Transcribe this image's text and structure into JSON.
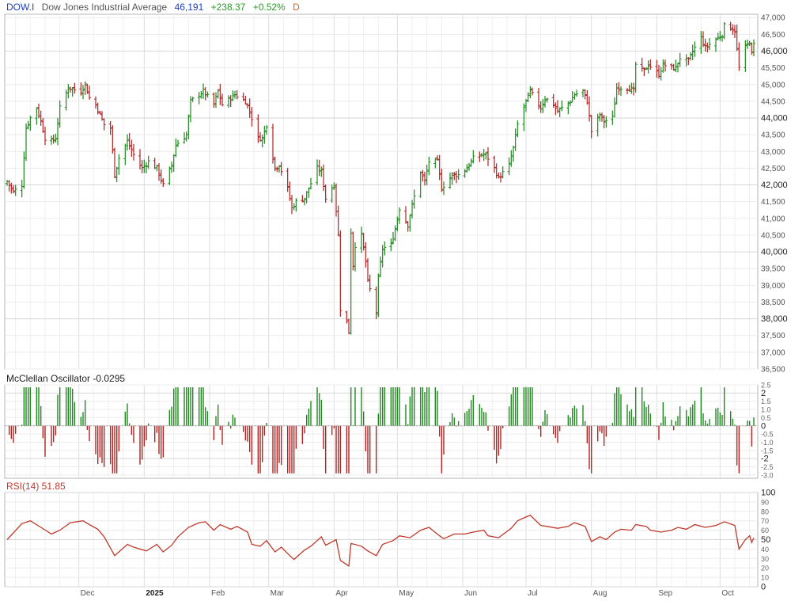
{
  "header": {
    "symbol": "DOW.I",
    "name": "Dow Jones Industrial Average",
    "price": "46,191",
    "change": "+238.37",
    "change_pct": "+0.52%",
    "period": "D"
  },
  "colors": {
    "up": "#1e8a1e",
    "down": "#b22222",
    "grid": "#e4e4e4",
    "rsi_line": "#c0392b",
    "border": "#bbbbbb"
  },
  "x_axis_labels": [
    "Dec",
    "2025",
    "Feb",
    "Mar",
    "Apr",
    "May",
    "Jun",
    "Jul",
    "Aug",
    "Sep",
    "Oct"
  ],
  "chart_data": [
    {
      "type": "ohlc",
      "title": "Dow Jones Industrial Average",
      "ylim": [
        36500,
        47100
      ],
      "y_ticks": [
        "36,500",
        "37,000",
        "37,500",
        "38,000",
        "38,500",
        "39,000",
        "39,500",
        "40,000",
        "40,500",
        "41,000",
        "41,500",
        "42,000",
        "42,500",
        "43,000",
        "43,500",
        "44,000",
        "44,500",
        "45,000",
        "45,500",
        "46,000",
        "46,500",
        "47,000"
      ],
      "y_major": [
        38000,
        40000,
        42000,
        44000,
        46000
      ],
      "grid": true,
      "close_series": [
        {
          "x": "2024-10-28",
          "y": 42100
        },
        {
          "x": "2024-10-31",
          "y": 41800
        },
        {
          "x": "2024-11-04",
          "y": 42000
        },
        {
          "x": "2024-11-06",
          "y": 43700
        },
        {
          "x": "2024-11-08",
          "y": 44000
        },
        {
          "x": "2024-11-11",
          "y": 44300
        },
        {
          "x": "2024-11-13",
          "y": 43900
        },
        {
          "x": "2024-11-15",
          "y": 43400
        },
        {
          "x": "2024-11-18",
          "y": 43300
        },
        {
          "x": "2024-11-20",
          "y": 43400
        },
        {
          "x": "2024-11-22",
          "y": 44300
        },
        {
          "x": "2024-11-26",
          "y": 44900
        },
        {
          "x": "2024-12-02",
          "y": 44800
        },
        {
          "x": "2024-12-04",
          "y": 45000
        },
        {
          "x": "2024-12-06",
          "y": 44600
        },
        {
          "x": "2024-12-09",
          "y": 44400
        },
        {
          "x": "2024-12-11",
          "y": 44100
        },
        {
          "x": "2024-12-13",
          "y": 43800
        },
        {
          "x": "2024-12-16",
          "y": 43700
        },
        {
          "x": "2024-12-18",
          "y": 42300
        },
        {
          "x": "2024-12-20",
          "y": 42800
        },
        {
          "x": "2024-12-24",
          "y": 43300
        },
        {
          "x": "2024-12-27",
          "y": 42900
        },
        {
          "x": "2024-12-31",
          "y": 42500
        },
        {
          "x": "2025-01-03",
          "y": 42700
        },
        {
          "x": "2025-01-07",
          "y": 42500
        },
        {
          "x": "2025-01-10",
          "y": 42000
        },
        {
          "x": "2025-01-14",
          "y": 42600
        },
        {
          "x": "2025-01-16",
          "y": 43200
        },
        {
          "x": "2025-01-21",
          "y": 43500
        },
        {
          "x": "2025-01-23",
          "y": 44500
        },
        {
          "x": "2025-01-27",
          "y": 44700
        },
        {
          "x": "2025-01-29",
          "y": 44800
        },
        {
          "x": "2025-02-03",
          "y": 44400
        },
        {
          "x": "2025-02-05",
          "y": 44800
        },
        {
          "x": "2025-02-07",
          "y": 44400
        },
        {
          "x": "2025-02-11",
          "y": 44600
        },
        {
          "x": "2025-02-13",
          "y": 44700
        },
        {
          "x": "2025-02-18",
          "y": 44500
        },
        {
          "x": "2025-02-20",
          "y": 44200
        },
        {
          "x": "2025-02-24",
          "y": 43400
        },
        {
          "x": "2025-02-26",
          "y": 43400
        },
        {
          "x": "2025-02-28",
          "y": 43800
        },
        {
          "x": "2025-03-04",
          "y": 42500
        },
        {
          "x": "2025-03-06",
          "y": 42600
        },
        {
          "x": "2025-03-10",
          "y": 41900
        },
        {
          "x": "2025-03-12",
          "y": 41300
        },
        {
          "x": "2025-03-14",
          "y": 41500
        },
        {
          "x": "2025-03-18",
          "y": 41600
        },
        {
          "x": "2025-03-20",
          "y": 41900
        },
        {
          "x": "2025-03-24",
          "y": 42500
        },
        {
          "x": "2025-03-26",
          "y": 42400
        },
        {
          "x": "2025-03-28",
          "y": 41600
        },
        {
          "x": "2025-04-01",
          "y": 42000
        },
        {
          "x": "2025-04-03",
          "y": 40500
        },
        {
          "x": "2025-04-04",
          "y": 38300
        },
        {
          "x": "2025-04-07",
          "y": 37900
        },
        {
          "x": "2025-04-08",
          "y": 37600
        },
        {
          "x": "2025-04-09",
          "y": 40600
        },
        {
          "x": "2025-04-10",
          "y": 39600
        },
        {
          "x": "2025-04-11",
          "y": 40200
        },
        {
          "x": "2025-04-14",
          "y": 40500
        },
        {
          "x": "2025-04-16",
          "y": 39700
        },
        {
          "x": "2025-04-17",
          "y": 39100
        },
        {
          "x": "2025-04-21",
          "y": 38200
        },
        {
          "x": "2025-04-22",
          "y": 39200
        },
        {
          "x": "2025-04-24",
          "y": 40100
        },
        {
          "x": "2025-04-28",
          "y": 40200
        },
        {
          "x": "2025-04-30",
          "y": 40700
        },
        {
          "x": "2025-05-02",
          "y": 41300
        },
        {
          "x": "2025-05-06",
          "y": 40800
        },
        {
          "x": "2025-05-08",
          "y": 41400
        },
        {
          "x": "2025-05-12",
          "y": 42400
        },
        {
          "x": "2025-05-14",
          "y": 42100
        },
        {
          "x": "2025-05-16",
          "y": 42700
        },
        {
          "x": "2025-05-20",
          "y": 42700
        },
        {
          "x": "2025-05-22",
          "y": 41900
        },
        {
          "x": "2025-05-27",
          "y": 42300
        },
        {
          "x": "2025-05-30",
          "y": 42300
        },
        {
          "x": "2025-06-03",
          "y": 42500
        },
        {
          "x": "2025-06-06",
          "y": 42800
        },
        {
          "x": "2025-06-10",
          "y": 42900
        },
        {
          "x": "2025-06-12",
          "y": 42900
        },
        {
          "x": "2025-06-16",
          "y": 42500
        },
        {
          "x": "2025-06-18",
          "y": 42200
        },
        {
          "x": "2025-06-23",
          "y": 42600
        },
        {
          "x": "2025-06-25",
          "y": 43100
        },
        {
          "x": "2025-06-27",
          "y": 43800
        },
        {
          "x": "2025-07-01",
          "y": 44500
        },
        {
          "x": "2025-07-03",
          "y": 44800
        },
        {
          "x": "2025-07-08",
          "y": 44300
        },
        {
          "x": "2025-07-10",
          "y": 44600
        },
        {
          "x": "2025-07-14",
          "y": 44400
        },
        {
          "x": "2025-07-16",
          "y": 44200
        },
        {
          "x": "2025-07-18",
          "y": 44300
        },
        {
          "x": "2025-07-22",
          "y": 44500
        },
        {
          "x": "2025-07-24",
          "y": 44700
        },
        {
          "x": "2025-07-28",
          "y": 44800
        },
        {
          "x": "2025-07-30",
          "y": 44500
        },
        {
          "x": "2025-08-01",
          "y": 43600
        },
        {
          "x": "2025-08-05",
          "y": 44100
        },
        {
          "x": "2025-08-07",
          "y": 43900
        },
        {
          "x": "2025-08-11",
          "y": 44000
        },
        {
          "x": "2025-08-13",
          "y": 44900
        },
        {
          "x": "2025-08-15",
          "y": 44900
        },
        {
          "x": "2025-08-19",
          "y": 44900
        },
        {
          "x": "2025-08-21",
          "y": 44800
        },
        {
          "x": "2025-08-22",
          "y": 45600
        },
        {
          "x": "2025-08-26",
          "y": 45400
        },
        {
          "x": "2025-08-28",
          "y": 45600
        },
        {
          "x": "2025-09-02",
          "y": 45300
        },
        {
          "x": "2025-09-04",
          "y": 45600
        },
        {
          "x": "2025-09-08",
          "y": 45500
        },
        {
          "x": "2025-09-10",
          "y": 45500
        },
        {
          "x": "2025-09-12",
          "y": 45800
        },
        {
          "x": "2025-09-16",
          "y": 45700
        },
        {
          "x": "2025-09-18",
          "y": 46000
        },
        {
          "x": "2025-09-22",
          "y": 46400
        },
        {
          "x": "2025-09-24",
          "y": 46100
        },
        {
          "x": "2025-09-26",
          "y": 46200
        },
        {
          "x": "2025-09-30",
          "y": 46400
        },
        {
          "x": "2025-10-02",
          "y": 46500
        },
        {
          "x": "2025-10-03",
          "y": 46750
        },
        {
          "x": "2025-10-06",
          "y": 46700
        },
        {
          "x": "2025-10-08",
          "y": 46600
        },
        {
          "x": "2025-10-10",
          "y": 45500
        },
        {
          "x": "2025-10-13",
          "y": 46100
        },
        {
          "x": "2025-10-15",
          "y": 46300
        },
        {
          "x": "2025-10-16",
          "y": 45900
        },
        {
          "x": "2025-10-17",
          "y": 46191
        }
      ]
    },
    {
      "type": "bar",
      "title": "McClellan Oscillator -0.0295",
      "ylim": [
        -3.2,
        2.5
      ],
      "y_ticks": [
        "2.5",
        "2",
        "1.5",
        "1.0",
        "0.5",
        "0",
        "-0.5",
        "-1.0",
        "-1.5",
        "-2",
        "-2.5",
        "-3.0"
      ],
      "y_major": [
        2,
        0,
        -2
      ],
      "last_value": -0.0295
    },
    {
      "type": "line",
      "title": "RSI(14) 51.85",
      "ylim": [
        0,
        100
      ],
      "y_ticks": [
        "100",
        "90",
        "80",
        "70",
        "60",
        "50",
        "40",
        "30",
        "20",
        "10",
        "0"
      ],
      "y_major": [
        100,
        50,
        0
      ],
      "last_value": 51.85,
      "series": [
        {
          "x": "2024-10-28",
          "y": 50
        },
        {
          "x": "2024-11-04",
          "y": 67
        },
        {
          "x": "2024-11-08",
          "y": 70
        },
        {
          "x": "2024-11-13",
          "y": 63
        },
        {
          "x": "2024-11-18",
          "y": 56
        },
        {
          "x": "2024-11-22",
          "y": 60
        },
        {
          "x": "2024-11-27",
          "y": 68
        },
        {
          "x": "2024-12-03",
          "y": 70
        },
        {
          "x": "2024-12-06",
          "y": 66
        },
        {
          "x": "2024-12-10",
          "y": 61
        },
        {
          "x": "2024-12-13",
          "y": 53
        },
        {
          "x": "2024-12-18",
          "y": 33
        },
        {
          "x": "2024-12-20",
          "y": 37
        },
        {
          "x": "2024-12-24",
          "y": 45
        },
        {
          "x": "2024-12-27",
          "y": 42
        },
        {
          "x": "2025-01-02",
          "y": 38
        },
        {
          "x": "2025-01-07",
          "y": 45
        },
        {
          "x": "2025-01-10",
          "y": 37
        },
        {
          "x": "2025-01-14",
          "y": 44
        },
        {
          "x": "2025-01-17",
          "y": 53
        },
        {
          "x": "2025-01-22",
          "y": 63
        },
        {
          "x": "2025-01-27",
          "y": 68
        },
        {
          "x": "2025-01-30",
          "y": 69
        },
        {
          "x": "2025-02-03",
          "y": 60
        },
        {
          "x": "2025-02-06",
          "y": 66
        },
        {
          "x": "2025-02-11",
          "y": 61
        },
        {
          "x": "2025-02-14",
          "y": 64
        },
        {
          "x": "2025-02-19",
          "y": 58
        },
        {
          "x": "2025-02-21",
          "y": 45
        },
        {
          "x": "2025-02-25",
          "y": 43
        },
        {
          "x": "2025-02-28",
          "y": 49
        },
        {
          "x": "2025-03-04",
          "y": 37
        },
        {
          "x": "2025-03-07",
          "y": 42
        },
        {
          "x": "2025-03-11",
          "y": 33
        },
        {
          "x": "2025-03-13",
          "y": 29
        },
        {
          "x": "2025-03-18",
          "y": 39
        },
        {
          "x": "2025-03-21",
          "y": 43
        },
        {
          "x": "2025-03-26",
          "y": 53
        },
        {
          "x": "2025-03-28",
          "y": 44
        },
        {
          "x": "2025-04-02",
          "y": 50
        },
        {
          "x": "2025-04-04",
          "y": 28
        },
        {
          "x": "2025-04-08",
          "y": 22
        },
        {
          "x": "2025-04-09",
          "y": 46
        },
        {
          "x": "2025-04-14",
          "y": 43
        },
        {
          "x": "2025-04-17",
          "y": 38
        },
        {
          "x": "2025-04-21",
          "y": 33
        },
        {
          "x": "2025-04-24",
          "y": 45
        },
        {
          "x": "2025-04-29",
          "y": 49
        },
        {
          "x": "2025-05-02",
          "y": 54
        },
        {
          "x": "2025-05-07",
          "y": 52
        },
        {
          "x": "2025-05-12",
          "y": 60
        },
        {
          "x": "2025-05-16",
          "y": 63
        },
        {
          "x": "2025-05-21",
          "y": 54
        },
        {
          "x": "2025-05-23",
          "y": 51
        },
        {
          "x": "2025-05-28",
          "y": 56
        },
        {
          "x": "2025-06-02",
          "y": 56
        },
        {
          "x": "2025-06-06",
          "y": 58
        },
        {
          "x": "2025-06-11",
          "y": 60
        },
        {
          "x": "2025-06-13",
          "y": 54
        },
        {
          "x": "2025-06-18",
          "y": 52
        },
        {
          "x": "2025-06-24",
          "y": 62
        },
        {
          "x": "2025-06-27",
          "y": 70
        },
        {
          "x": "2025-07-01",
          "y": 74
        },
        {
          "x": "2025-07-03",
          "y": 76
        },
        {
          "x": "2025-07-08",
          "y": 65
        },
        {
          "x": "2025-07-11",
          "y": 64
        },
        {
          "x": "2025-07-16",
          "y": 62
        },
        {
          "x": "2025-07-21",
          "y": 64
        },
        {
          "x": "2025-07-24",
          "y": 68
        },
        {
          "x": "2025-07-29",
          "y": 64
        },
        {
          "x": "2025-08-01",
          "y": 48
        },
        {
          "x": "2025-08-05",
          "y": 53
        },
        {
          "x": "2025-08-08",
          "y": 50
        },
        {
          "x": "2025-08-12",
          "y": 58
        },
        {
          "x": "2025-08-15",
          "y": 61
        },
        {
          "x": "2025-08-20",
          "y": 60
        },
        {
          "x": "2025-08-22",
          "y": 66
        },
        {
          "x": "2025-08-27",
          "y": 64
        },
        {
          "x": "2025-08-29",
          "y": 60
        },
        {
          "x": "2025-09-03",
          "y": 58
        },
        {
          "x": "2025-09-08",
          "y": 60
        },
        {
          "x": "2025-09-11",
          "y": 63
        },
        {
          "x": "2025-09-15",
          "y": 61
        },
        {
          "x": "2025-09-19",
          "y": 66
        },
        {
          "x": "2025-09-24",
          "y": 63
        },
        {
          "x": "2025-09-29",
          "y": 65
        },
        {
          "x": "2025-10-03",
          "y": 69
        },
        {
          "x": "2025-10-08",
          "y": 65
        },
        {
          "x": "2025-10-10",
          "y": 40
        },
        {
          "x": "2025-10-13",
          "y": 50
        },
        {
          "x": "2025-10-15",
          "y": 54
        },
        {
          "x": "2025-10-16",
          "y": 47
        },
        {
          "x": "2025-10-17",
          "y": 51.85
        }
      ]
    }
  ]
}
